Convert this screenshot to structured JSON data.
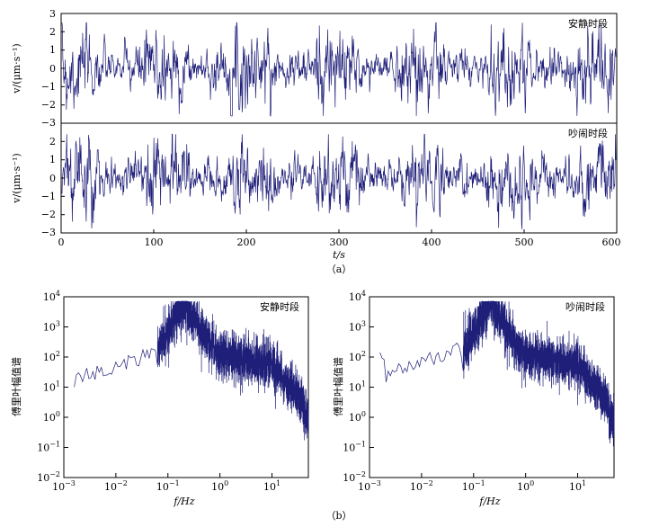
{
  "chart_data": [
    {
      "type": "line",
      "panel": "a-top",
      "annotation": "安静时段",
      "ylabel": "v/(μm·s⁻¹)",
      "xlim": [
        0,
        600
      ],
      "ylim": [
        -3,
        3
      ],
      "yticks": [
        "3",
        "2",
        "1",
        "0",
        "−1",
        "−2",
        "−3"
      ],
      "series": [
        {
          "color": "#1f1f7a",
          "amplitude": 1.0,
          "peak_range": [
            -2.6,
            2.5
          ]
        }
      ]
    },
    {
      "type": "line",
      "panel": "a-bottom",
      "annotation": "吵闹时段",
      "ylabel": "v/(μm·s⁻¹)",
      "xlabel": "t/s",
      "xlim": [
        0,
        600
      ],
      "ylim": [
        -3,
        3
      ],
      "xticks": [
        "0",
        "100",
        "200",
        "300",
        "400",
        "500",
        "600"
      ],
      "yticks": [
        "2",
        "1",
        "0",
        "−1",
        "−2",
        "−3"
      ],
      "series": [
        {
          "color": "#1f1f7a",
          "amplitude": 1.0,
          "peak_range": [
            -2.8,
            2.4
          ]
        }
      ]
    },
    {
      "type": "line",
      "panel": "b-left",
      "annotation": "安静时段",
      "ylabel": "傅里叶幅值谱",
      "xlabel": "f/Hz",
      "xscale": "log",
      "yscale": "log",
      "xlim": [
        0.001,
        50
      ],
      "ylim": [
        0.01,
        10000
      ],
      "series": [
        {
          "color": "#1f1f7a",
          "peak_x": 0.2,
          "peak_y": 6000
        }
      ]
    },
    {
      "type": "line",
      "panel": "b-right",
      "annotation": "吵闹时段",
      "ylabel": "傅里叶幅值谱",
      "xlabel": "f/Hz",
      "xscale": "log",
      "yscale": "log",
      "xlim": [
        0.001,
        50
      ],
      "ylim": [
        0.01,
        10000
      ],
      "series": [
        {
          "color": "#1f1f7a",
          "peak_x": 0.2,
          "peak_y": 5000
        }
      ]
    }
  ],
  "captions": {
    "a": "（a）",
    "b": "（b）"
  }
}
